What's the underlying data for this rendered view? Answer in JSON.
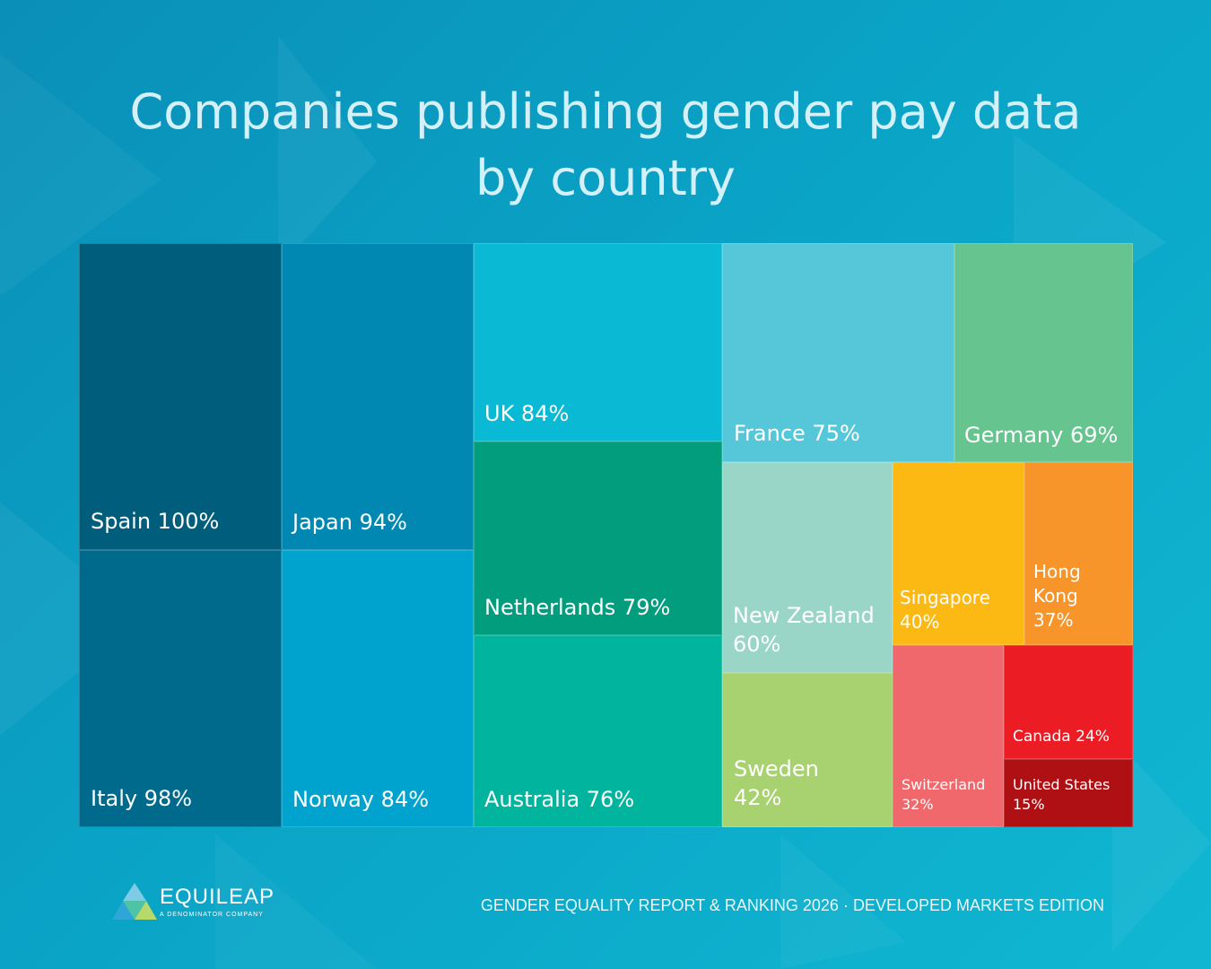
{
  "title": {
    "line1": "Companies publishing gender pay data",
    "line2": "by country"
  },
  "chart_data": {
    "type": "treemap",
    "title": "Companies publishing gender pay data by country",
    "unit": "%",
    "items": [
      {
        "name": "Spain",
        "label_lines": [
          "Spain 100%"
        ],
        "value": 100,
        "color": "#005e7c"
      },
      {
        "name": "Japan",
        "label_lines": [
          "Japan 94%"
        ],
        "value": 94,
        "color": "#0088b3"
      },
      {
        "name": "Italy",
        "label_lines": [
          "Italy 98%"
        ],
        "value": 98,
        "color": "#006a8c"
      },
      {
        "name": "Norway",
        "label_lines": [
          "Norway 84%"
        ],
        "value": 84,
        "color": "#00a3cd"
      },
      {
        "name": "UK",
        "label_lines": [
          "UK 84%"
        ],
        "value": 84,
        "color": "#0ab9d3"
      },
      {
        "name": "Netherlands",
        "label_lines": [
          "Netherlands 79%"
        ],
        "value": 79,
        "color": "#019d7d"
      },
      {
        "name": "Australia",
        "label_lines": [
          "Australia 76%"
        ],
        "value": 76,
        "color": "#00b49d"
      },
      {
        "name": "France",
        "label_lines": [
          "France 75%"
        ],
        "value": 75,
        "color": "#55c7d9"
      },
      {
        "name": "Germany",
        "label_lines": [
          "Germany 69%"
        ],
        "value": 69,
        "color": "#66c48e"
      },
      {
        "name": "New Zealand",
        "label_lines": [
          "New Zealand",
          "60%"
        ],
        "value": 60,
        "color": "#9ad6c8"
      },
      {
        "name": "Sweden",
        "label_lines": [
          "Sweden",
          "42%"
        ],
        "value": 42,
        "color": "#a8d16f"
      },
      {
        "name": "Singapore",
        "label_lines": [
          "Singapore",
          "40%"
        ],
        "value": 40,
        "color": "#fdb913"
      },
      {
        "name": "Hong Kong",
        "label_lines": [
          "Hong",
          "Kong",
          "37%"
        ],
        "value": 37,
        "color": "#f7942a"
      },
      {
        "name": "Switzerland",
        "label_lines": [
          "Switzerland",
          "32%"
        ],
        "value": 32,
        "color": "#f0676c"
      },
      {
        "name": "Canada",
        "label_lines": [
          "Canada 24%"
        ],
        "value": 24,
        "color": "#ec1c24"
      },
      {
        "name": "United States",
        "label_lines": [
          "United States",
          "15%"
        ],
        "value": 15,
        "color": "#ae1014"
      }
    ]
  },
  "footer": {
    "logo_name": "EQUILEAP",
    "logo_tagline": "A DENOMINATOR COMPANY",
    "report": "GENDER EQUALITY REPORT & RANKING 2026 ·  DEVELOPED MARKETS EDITION"
  }
}
